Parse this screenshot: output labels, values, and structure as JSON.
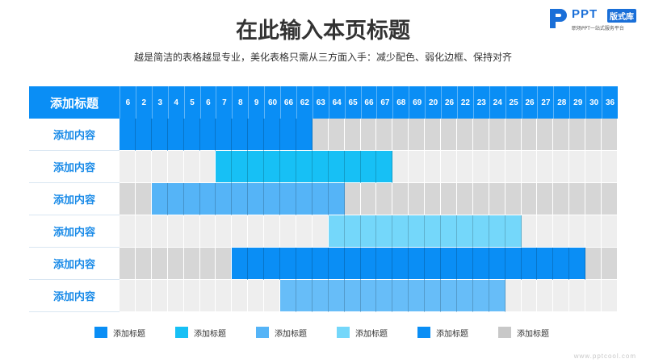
{
  "title": "在此输入本页标题",
  "subtitle": "越是简洁的表格越显专业，美化表格只需从三方面入手：减少配色、弱化边框、保持对齐",
  "logo": {
    "brand": "PPT",
    "badge": "版式库",
    "tagline": "职场PPT一站式服务平台"
  },
  "watermark": "www.pptcool.com",
  "table": {
    "header_label": "添加标题",
    "columns": [
      "6",
      "2",
      "3",
      "4",
      "5",
      "6",
      "7",
      "8",
      "9",
      "60",
      "66",
      "62",
      "63",
      "64",
      "65",
      "66",
      "67",
      "68",
      "69",
      "20",
      "26",
      "22",
      "23",
      "24",
      "25",
      "26",
      "27",
      "28",
      "29",
      "30",
      "36"
    ],
    "rows": [
      {
        "label": "添加内容",
        "color_index": 0,
        "bar": [
          0,
          11
        ]
      },
      {
        "label": "添加内容",
        "color_index": 1,
        "bar": [
          6,
          16
        ]
      },
      {
        "label": "添加内容",
        "color_index": 2,
        "bar": [
          2,
          13
        ]
      },
      {
        "label": "添加内容",
        "color_index": 3,
        "bar": [
          13,
          24
        ]
      },
      {
        "label": "添加内容",
        "color_index": 4,
        "bar": [
          7,
          28
        ]
      },
      {
        "label": "添加内容",
        "color_index": 5,
        "bar": [
          10,
          23
        ]
      }
    ]
  },
  "colors": {
    "bar_colors": [
      "#0a8ef5",
      "#17c0f5",
      "#55b4f7",
      "#74d7fa",
      "#0a8ef5",
      "#67bdf8"
    ],
    "gray_dark": "#d6d6d6",
    "gray_light": "#eeeeee",
    "header_blue": "#0a8ef5",
    "label_blue": "#1a8be8"
  },
  "legend": [
    {
      "label": "添加标题",
      "color": "#0a8ef5"
    },
    {
      "label": "添加标题",
      "color": "#17c0f5"
    },
    {
      "label": "添加标题",
      "color": "#55b4f7"
    },
    {
      "label": "添加标题",
      "color": "#74d7fa"
    },
    {
      "label": "添加标题",
      "color": "#0a8ef5"
    },
    {
      "label": "添加标题",
      "color": "#c8c8c8"
    }
  ]
}
